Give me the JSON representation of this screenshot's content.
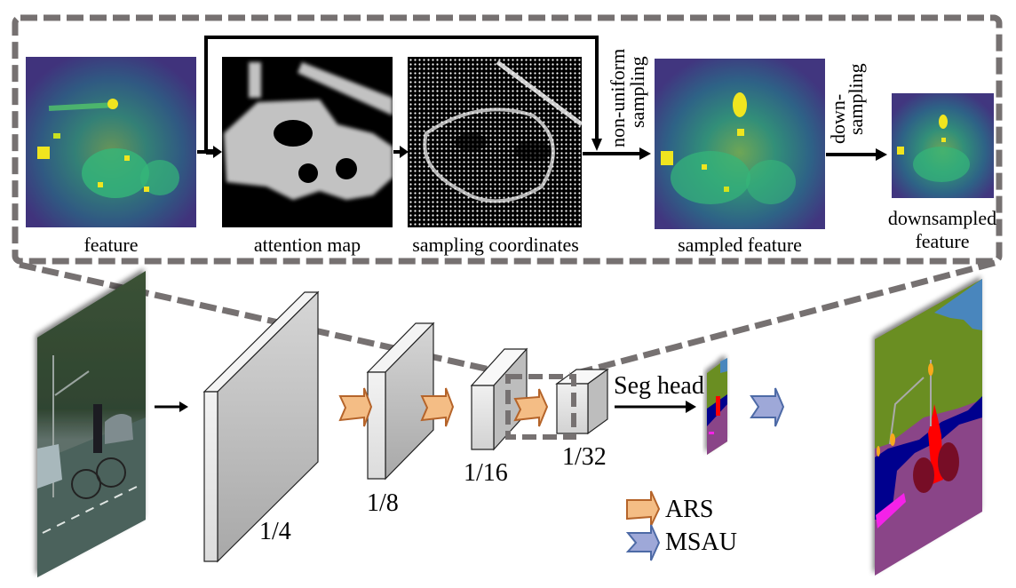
{
  "top_panel": {
    "labels": {
      "feature": "feature",
      "attention_map": "attention map",
      "sampling_coordinates": "sampling coordinates",
      "sampled_feature": "sampled feature",
      "downsampled_feature_line1": "downsampled",
      "downsampled_feature_line2": "feature",
      "non_uniform_line1": "non-uniform",
      "non_uniform_line2": "sampling",
      "down_sampling_line1": "down-",
      "down_sampling_line2": "sampling"
    }
  },
  "pipeline": {
    "scales": [
      "1/4",
      "1/8",
      "1/16",
      "1/32"
    ],
    "seg_head_label": "Seg head"
  },
  "legend": {
    "items": [
      {
        "label": "ARS",
        "color": "#f4bd85",
        "border": "#b5642a"
      },
      {
        "label": "MSAU",
        "color": "#9ea8d8",
        "border": "#4d6aa6"
      }
    ]
  },
  "colors": {
    "dash": "#767171",
    "viridis_dark": "#3b1f6e",
    "viridis_mid": "#2a8a8a",
    "viridis_bright": "#f0e51f",
    "seg_sky": "#4a86bd",
    "seg_veg": "#6b8e23",
    "seg_road": "#8a4488",
    "seg_car": "#00008e",
    "seg_rider": "#ff0000",
    "seg_bike": "#771126",
    "seg_sidewalk": "#f423e8",
    "seg_pole": "#999999",
    "seg_light": "#f8aa1e"
  }
}
